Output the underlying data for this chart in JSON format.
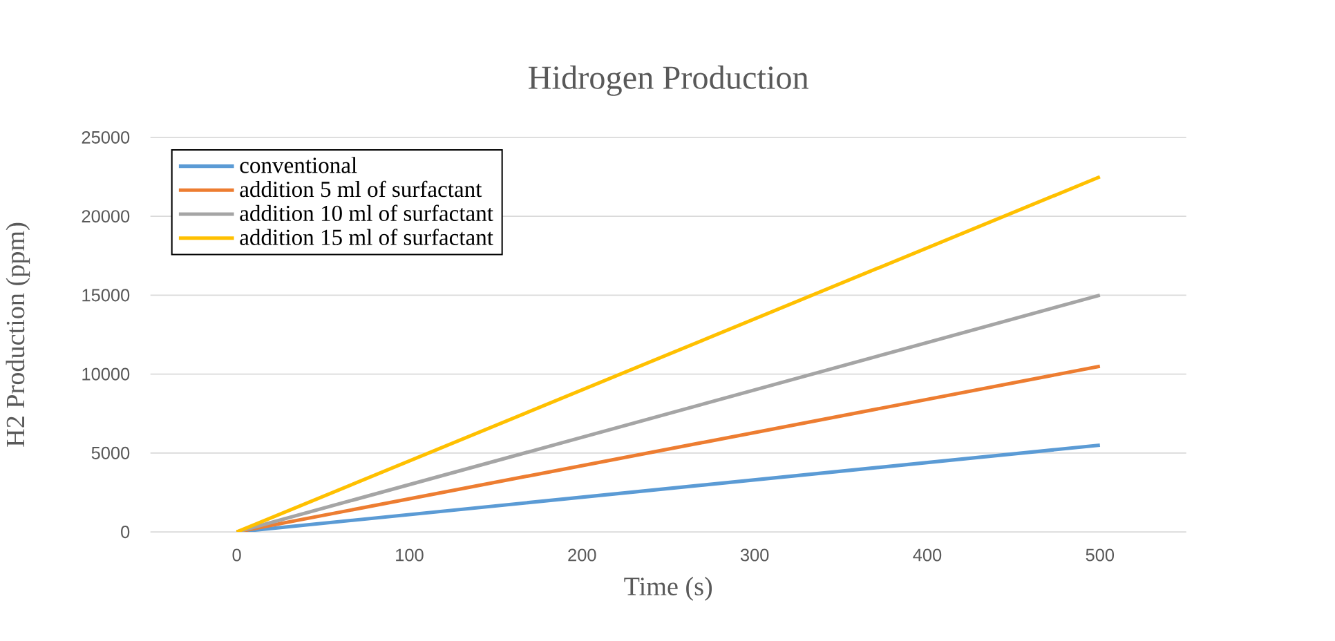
{
  "chart_data": {
    "type": "line",
    "title": "Hidrogen Production",
    "xlabel": "Time (s)",
    "ylabel": "H2 Production (ppm)",
    "xlim": [
      -50,
      550
    ],
    "xticks": [
      0,
      100,
      200,
      300,
      400,
      500
    ],
    "ylim": [
      0,
      25000
    ],
    "yticks": [
      0,
      5000,
      10000,
      15000,
      20000,
      25000
    ],
    "x": [
      0,
      500
    ],
    "grid": "y",
    "legend": "top left",
    "marker": "none",
    "line_style": "solid",
    "series": [
      {
        "name": "conventional",
        "color": "#5b9bd5",
        "values": [
          0,
          5500
        ]
      },
      {
        "name": "addition 5 ml of surfactant",
        "color": "#ed7d31",
        "values": [
          0,
          10500
        ]
      },
      {
        "name": "addition 10 ml of surfactant",
        "color": "#a5a5a5",
        "values": [
          0,
          15000
        ]
      },
      {
        "name": "addition 15 ml of surfactant",
        "color": "#ffc000",
        "values": [
          0,
          22500
        ]
      }
    ]
  }
}
